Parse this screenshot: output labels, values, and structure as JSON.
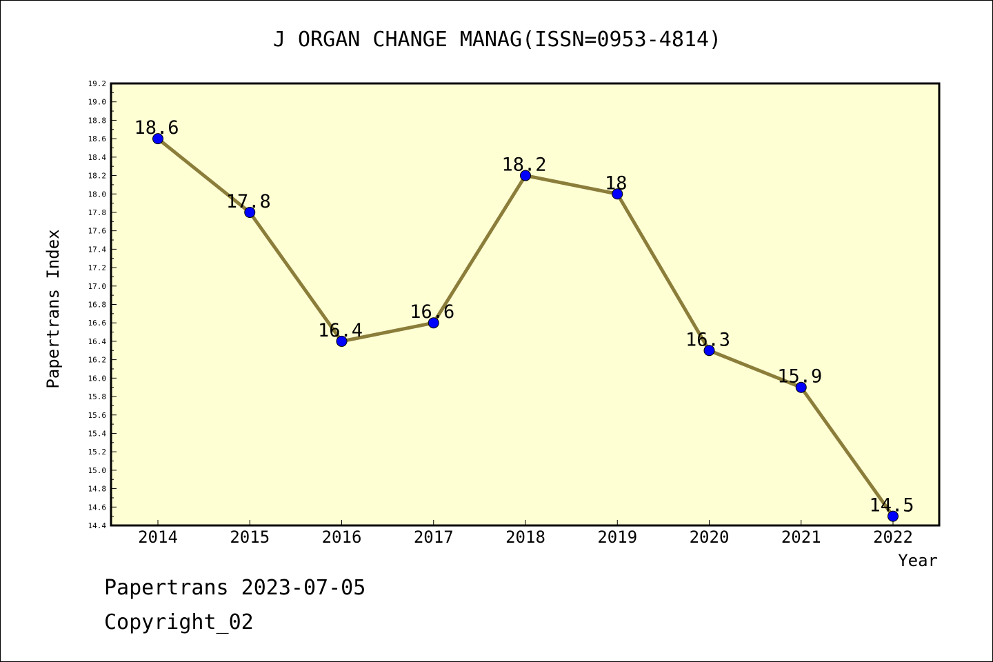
{
  "footer": {
    "stamp": "Papertrans 2023-07-05",
    "copyright": "Copyright_02"
  },
  "chart_data": {
    "type": "line",
    "title": "J ORGAN CHANGE MANAG(ISSN=0953-4814)",
    "xlabel": "Year",
    "ylabel": "Papertrans Index",
    "x": [
      "2014",
      "2015",
      "2016",
      "2017",
      "2018",
      "2019",
      "2020",
      "2021",
      "2022"
    ],
    "values": [
      18.6,
      17.8,
      16.4,
      16.6,
      18.2,
      18.0,
      16.3,
      15.9,
      14.5
    ],
    "data_labels": [
      "18.6",
      "17.8",
      "16.4",
      "16.6",
      "18.2",
      "18",
      "16.3",
      "15.9",
      "14.5"
    ],
    "ylim": [
      14.4,
      19.2
    ],
    "ytick_step": 0.2,
    "grid": false,
    "legend": "none",
    "colors": {
      "plot_background": "#ffffd4",
      "line": "#8b7d3a",
      "marker": "#0000ff"
    }
  }
}
